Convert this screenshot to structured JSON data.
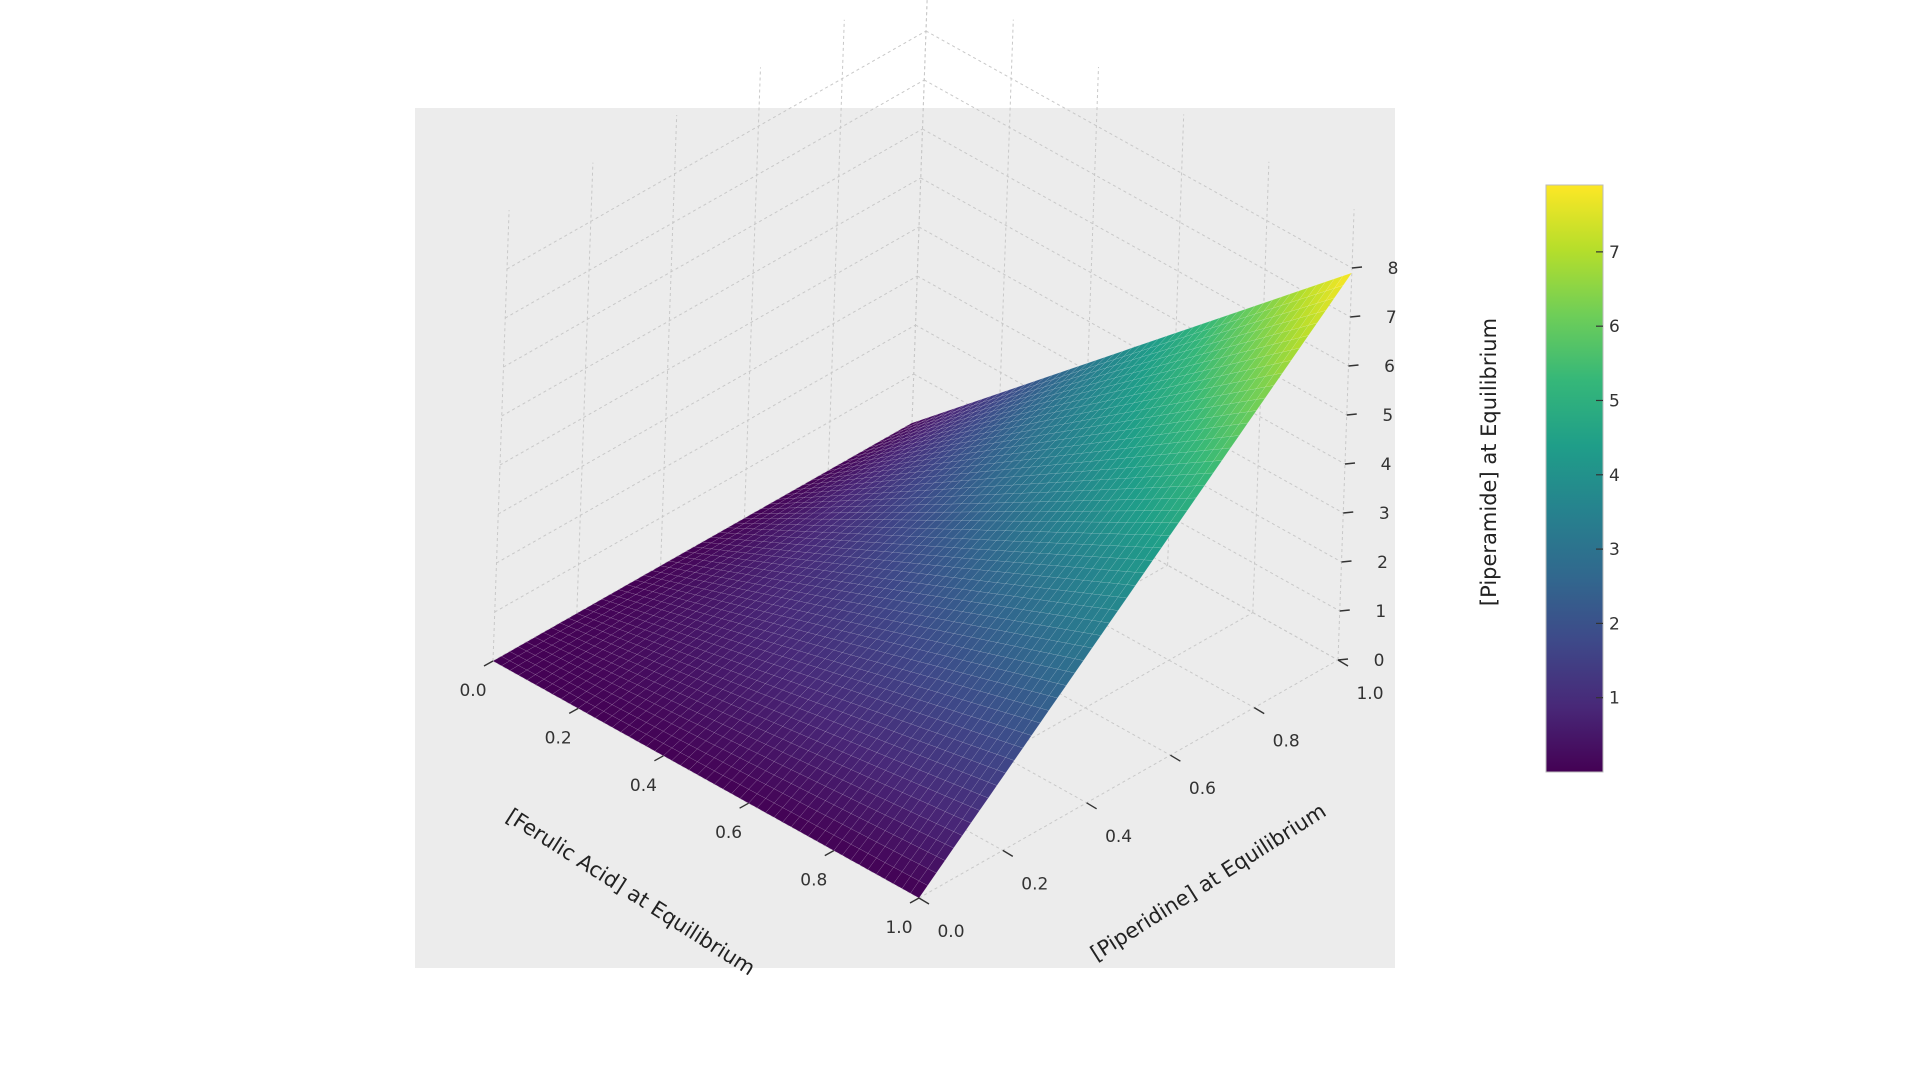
{
  "chart_data": {
    "type": "surface",
    "xlabel": "[Ferulic Acid] at Equilibrium",
    "ylabel": "[Piperidine] at Equilibrium",
    "zlabel": "",
    "colorbar_label": "[Piperamide] at Equilibrium",
    "colormap": "viridis",
    "xlim": [
      0.0,
      1.0
    ],
    "ylim": [
      0.0,
      1.0
    ],
    "zlim": [
      0,
      8
    ],
    "x_ticks": [
      "0.0",
      "0.2",
      "0.4",
      "0.6",
      "0.8",
      "1.0"
    ],
    "y_ticks": [
      "0.0",
      "0.2",
      "0.4",
      "0.6",
      "0.8",
      "1.0"
    ],
    "z_ticks": [
      "0",
      "1",
      "2",
      "3",
      "4",
      "5",
      "6",
      "7",
      "8"
    ],
    "colorbar_range": [
      0,
      7.9
    ],
    "colorbar_ticks": [
      "1",
      "2",
      "3",
      "4",
      "5",
      "6",
      "7"
    ],
    "surface": {
      "formula": "z = 7.9 * x * y",
      "corners": [
        {
          "x": 0,
          "y": 0,
          "z": 0
        },
        {
          "x": 1,
          "y": 0,
          "z": 0
        },
        {
          "x": 0,
          "y": 1,
          "z": 0
        },
        {
          "x": 1,
          "y": 1,
          "z": 7.9
        }
      ]
    },
    "grid": true,
    "pane_color": "#ececec",
    "viridis_stops": [
      "#440154",
      "#482878",
      "#3e4989",
      "#31688e",
      "#26828e",
      "#1f9e89",
      "#35b779",
      "#6ece58",
      "#b5de2b",
      "#fde725"
    ]
  }
}
